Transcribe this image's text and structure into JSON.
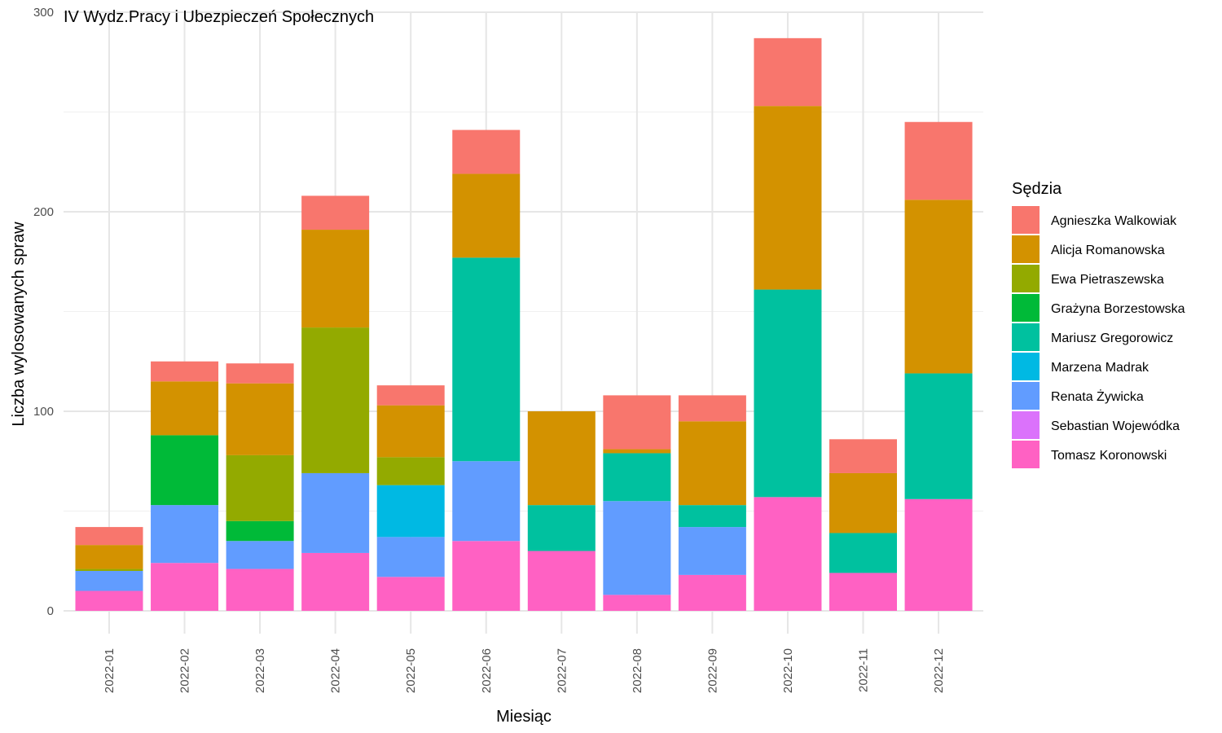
{
  "chart_data": {
    "type": "bar",
    "stacked": true,
    "title": "IV Wydz.Pracy i Ubezpieczeń Społecznych",
    "xlabel": "Miesiąc",
    "ylabel": "Liczba wylosowanych spraw",
    "ylim": [
      0,
      300
    ],
    "yticks": [
      0,
      100,
      200,
      300
    ],
    "grid": true,
    "legend": {
      "title": "Sędzia",
      "placement": "right"
    },
    "categories": [
      "2022-01",
      "2022-02",
      "2022-03",
      "2022-04",
      "2022-05",
      "2022-06",
      "2022-07",
      "2022-08",
      "2022-09",
      "2022-10",
      "2022-11",
      "2022-12"
    ],
    "series": [
      {
        "name": "Agnieszka Walkowiak",
        "color": "#F8766D",
        "values": [
          9,
          10,
          10,
          17,
          10,
          22,
          0,
          27,
          13,
          34,
          17,
          39
        ]
      },
      {
        "name": "Alicja Romanowska",
        "color": "#D39200",
        "values": [
          12,
          27,
          36,
          49,
          26,
          42,
          47,
          2,
          42,
          92,
          30,
          87
        ]
      },
      {
        "name": "Ewa Pietraszewska",
        "color": "#93AA00",
        "values": [
          1,
          0,
          33,
          73,
          14,
          0,
          0,
          0,
          0,
          0,
          0,
          0
        ]
      },
      {
        "name": "Grażyna Borzestowska",
        "color": "#00BA38",
        "values": [
          0,
          35,
          10,
          0,
          0,
          0,
          0,
          0,
          0,
          0,
          0,
          0
        ]
      },
      {
        "name": "Mariusz Gregorowicz",
        "color": "#00C19F",
        "values": [
          0,
          0,
          0,
          0,
          0,
          102,
          23,
          24,
          11,
          104,
          20,
          63
        ]
      },
      {
        "name": "Marzena Madrak",
        "color": "#00B9E3",
        "values": [
          0,
          0,
          0,
          0,
          26,
          0,
          0,
          0,
          0,
          0,
          0,
          0
        ]
      },
      {
        "name": "Renata Żywicka",
        "color": "#619CFF",
        "values": [
          10,
          29,
          14,
          40,
          20,
          40,
          0,
          47,
          24,
          0,
          0,
          0
        ]
      },
      {
        "name": "Sebastian Wojewódka",
        "color": "#DB72FB",
        "values": [
          0,
          0,
          0,
          0,
          0,
          0,
          0,
          0,
          0,
          0,
          0,
          0
        ]
      },
      {
        "name": "Tomasz Koronowski",
        "color": "#FF61C3",
        "values": [
          10,
          24,
          21,
          29,
          17,
          35,
          30,
          8,
          18,
          57,
          19,
          56
        ]
      }
    ]
  }
}
